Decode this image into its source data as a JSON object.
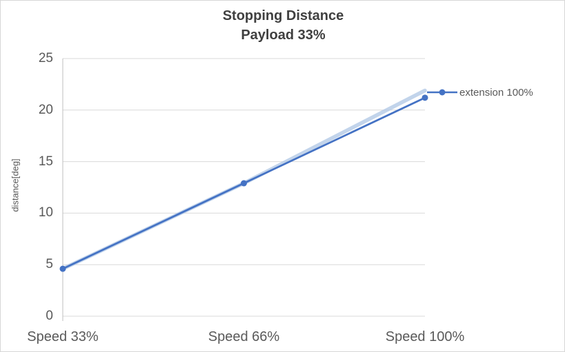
{
  "chart": {
    "title_line1": "Stopping Distance",
    "title_line2": "Payload 33%",
    "y_axis_label": "distance[deg]"
  },
  "legend": {
    "items": [
      {
        "label": "extension 100%",
        "color": "#4472C4"
      }
    ]
  },
  "chart_data": {
    "type": "line",
    "title": "Stopping Distance",
    "subtitle": "Payload 33%",
    "xlabel": "",
    "ylabel": "distance[deg]",
    "categories": [
      "Speed 33%",
      "Speed 66%",
      "Speed 100%"
    ],
    "series": [
      {
        "name": "extension 100% (light overlay band)",
        "color": "#B3C9E6",
        "width": 5.5,
        "opacity": 0.8,
        "markers": false,
        "values": [
          4.6,
          12.9,
          21.9
        ]
      },
      {
        "name": "extension 100%",
        "color": "#4472C4",
        "width": 2.75,
        "opacity": 1,
        "markers": true,
        "values": [
          4.6,
          12.9,
          21.2
        ]
      }
    ],
    "ylim": [
      0,
      25
    ],
    "yticks": [
      0,
      5,
      10,
      15,
      20,
      25
    ],
    "grid": true,
    "legend_position": "right",
    "colors": {
      "gridline": "#D9D9D9",
      "axis": "#BFBFBF",
      "title_text": "#404040",
      "axis_text": "#595959"
    }
  }
}
